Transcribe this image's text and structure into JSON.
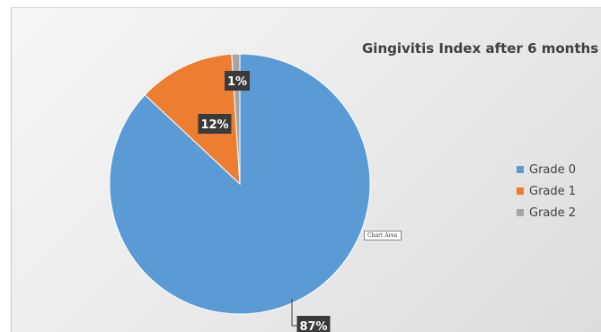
{
  "chart_data": {
    "type": "pie",
    "title": "Gingivitis Index after 6 months",
    "categories": [
      "Grade 0",
      "Grade 1",
      "Grade 2"
    ],
    "values": [
      87,
      12,
      1
    ],
    "data_labels": [
      "87%",
      "12%",
      "1%"
    ],
    "colors": [
      "#5b9bd5",
      "#ed7d31",
      "#a5a5a5"
    ],
    "legend_position": "right"
  },
  "chart_area_tooltip": "Chart Area"
}
